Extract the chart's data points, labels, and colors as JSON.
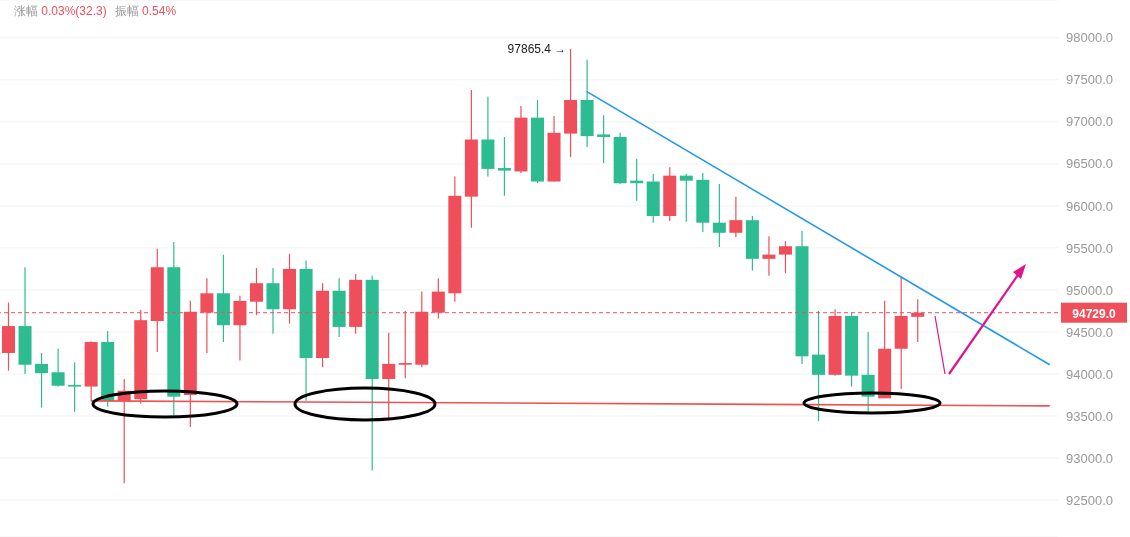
{
  "chart_data": {
    "type": "candlestick",
    "categories": [
      null,
      null,
      null,
      null,
      null,
      null,
      null,
      null,
      null,
      null,
      null,
      null,
      null,
      null,
      null,
      null,
      null,
      null,
      null,
      null,
      null,
      null,
      null,
      null,
      null,
      null,
      null,
      null,
      null,
      null,
      null,
      null,
      null,
      null,
      null,
      null,
      null,
      null,
      null,
      null,
      null,
      null,
      null,
      null,
      null,
      null,
      null,
      null,
      null,
      null,
      null,
      null,
      null,
      null,
      null,
      null,
      null,
      null,
      null,
      null,
      null,
      null,
      null,
      null
    ],
    "ohlc": [
      [
        94250,
        94850,
        94040,
        94570
      ],
      [
        94570,
        95270,
        94000,
        94110
      ],
      [
        94120,
        94250,
        93600,
        94010
      ],
      [
        94020,
        94300,
        93850,
        93860
      ],
      [
        93870,
        94140,
        93550,
        93850
      ],
      [
        93850,
        94390,
        93680,
        94380
      ],
      [
        94380,
        94510,
        93610,
        93680
      ],
      [
        93680,
        93940,
        92700,
        93800
      ],
      [
        93700,
        94760,
        93650,
        94640
      ],
      [
        94630,
        95490,
        94260,
        95270
      ],
      [
        95270,
        95570,
        93510,
        93730
      ],
      [
        93750,
        94870,
        93370,
        94740
      ],
      [
        94730,
        95140,
        94250,
        94960
      ],
      [
        94960,
        95420,
        94380,
        94580
      ],
      [
        94580,
        94930,
        94160,
        94870
      ],
      [
        94860,
        95260,
        94700,
        95080
      ],
      [
        95080,
        95260,
        94480,
        94770
      ],
      [
        94770,
        95430,
        94600,
        95250
      ],
      [
        95250,
        95350,
        93680,
        94190
      ],
      [
        94190,
        95080,
        94080,
        94990
      ],
      [
        94990,
        95140,
        94440,
        94560
      ],
      [
        94560,
        95190,
        94480,
        95120
      ],
      [
        95120,
        95170,
        92850,
        93940
      ],
      [
        93940,
        94490,
        93480,
        94120
      ],
      [
        94110,
        94750,
        93950,
        94130
      ],
      [
        94110,
        94980,
        94080,
        94740
      ],
      [
        94730,
        95140,
        94660,
        94980
      ],
      [
        94960,
        96350,
        94860,
        96120
      ],
      [
        96110,
        97380,
        95740,
        96790
      ],
      [
        96790,
        97300,
        96350,
        96440
      ],
      [
        96450,
        96820,
        96120,
        96420
      ],
      [
        96410,
        97190,
        96390,
        97050
      ],
      [
        97050,
        97260,
        96270,
        96290
      ],
      [
        96290,
        97070,
        96290,
        96870
      ],
      [
        96860,
        97865.4,
        96580,
        97260
      ],
      [
        97260,
        97740,
        96700,
        96830
      ],
      [
        96850,
        97080,
        96510,
        96820
      ],
      [
        96820,
        96870,
        96260,
        96270
      ],
      [
        96300,
        96560,
        96060,
        96270
      ],
      [
        96290,
        96380,
        95800,
        95880
      ],
      [
        95880,
        96460,
        95820,
        96360
      ],
      [
        96360,
        96380,
        95810,
        96300
      ],
      [
        96310,
        96390,
        95690,
        95800
      ],
      [
        95800,
        96260,
        95510,
        95680
      ],
      [
        95680,
        96110,
        95630,
        95830
      ],
      [
        95830,
        95880,
        95230,
        95370
      ],
      [
        95370,
        95640,
        95170,
        95420
      ],
      [
        95420,
        95580,
        95200,
        95520
      ],
      [
        95520,
        95700,
        94120,
        94210
      ],
      [
        94230,
        94750,
        93440,
        93990
      ],
      [
        93990,
        94770,
        93980,
        94690
      ],
      [
        94690,
        94730,
        93850,
        93980
      ],
      [
        93990,
        94500,
        93550,
        93730
      ],
      [
        93710,
        94870,
        93710,
        94300
      ],
      [
        94300,
        95160,
        93820,
        94690
      ],
      [
        94680,
        94890,
        94380,
        94729
      ],
      null,
      null,
      null,
      null,
      null,
      null,
      null,
      null
    ],
    "colors": [
      "#ef4f5b",
      "#2dbb92",
      "#2dbb92",
      "#2dbb92",
      "#2dbb92",
      "#ef4f5b",
      "#2dbb92",
      "#ef4f5b",
      "#ef4f5b",
      "#ef4f5b",
      "#2dbb92",
      "#ef4f5b",
      "#ef4f5b",
      "#2dbb92",
      "#ef4f5b",
      "#ef4f5b",
      "#2dbb92",
      "#ef4f5b",
      "#2dbb92",
      "#ef4f5b",
      "#2dbb92",
      "#ef4f5b",
      "#2dbb92",
      "#ef4f5b",
      "#ef4f5b",
      "#ef4f5b",
      "#ef4f5b",
      "#ef4f5b",
      "#ef4f5b",
      "#2dbb92",
      "#2dbb92",
      "#ef4f5b",
      "#2dbb92",
      "#ef4f5b",
      "#ef4f5b",
      "#2dbb92",
      "#2dbb92",
      "#2dbb92",
      "#2dbb92",
      "#2dbb92",
      "#ef4f5b",
      "#2dbb92",
      "#2dbb92",
      "#2dbb92",
      "#ef4f5b",
      "#2dbb92",
      "#ef4f5b",
      "#ef4f5b",
      "#2dbb92",
      "#2dbb92",
      "#ef4f5b",
      "#2dbb92",
      "#2dbb92",
      "#ef4f5b",
      "#ef4f5b",
      "#ef4f5b",
      null,
      null,
      null,
      null,
      null,
      null,
      null,
      null
    ],
    "series": [
      {
        "type": "line",
        "color": "#2196f3",
        "values": [
          null,
          null,
          null,
          null,
          null,
          null,
          null,
          null,
          null,
          null,
          null,
          null,
          null,
          null,
          null,
          null,
          null,
          null,
          null,
          null,
          null,
          null,
          null,
          null,
          null,
          null,
          null,
          null,
          null,
          null,
          null,
          null,
          null,
          null,
          null,
          97360,
          null,
          null,
          null,
          null,
          null,
          null,
          null,
          null,
          null,
          null,
          null,
          null,
          null,
          null,
          null,
          null,
          null,
          null,
          null,
          null,
          null,
          null,
          null,
          null,
          null,
          null,
          null,
          94110
        ]
      },
      {
        "type": "line",
        "color": "#f0504f",
        "values": [
          null,
          null,
          null,
          null,
          null,
          93680,
          null,
          null,
          null,
          null,
          null,
          null,
          null,
          null,
          null,
          null,
          null,
          null,
          null,
          null,
          null,
          null,
          null,
          null,
          null,
          null,
          null,
          null,
          null,
          null,
          null,
          null,
          null,
          null,
          null,
          null,
          null,
          null,
          null,
          null,
          null,
          null,
          null,
          null,
          null,
          null,
          null,
          null,
          null,
          null,
          null,
          null,
          null,
          null,
          null,
          null,
          null,
          null,
          null,
          null,
          null,
          null,
          null,
          93620
        ]
      }
    ],
    "ylim": [
      92060,
      98450
    ],
    "yticks": [
      {
        "value": 92500,
        "label": "92500.0"
      },
      {
        "value": 93000,
        "label": "93000.0"
      },
      {
        "value": 93500,
        "label": "93500.0"
      },
      {
        "value": 94000,
        "label": "94000.0"
      },
      {
        "value": 94500,
        "label": "94500.0"
      },
      {
        "value": 95000,
        "label": "95000.0"
      },
      {
        "value": 95500,
        "label": "95500.0"
      },
      {
        "value": 96000,
        "label": "96000.0"
      },
      {
        "value": 96500,
        "label": "96500.0"
      },
      {
        "value": 97000,
        "label": "97000.0"
      },
      {
        "value": 97500,
        "label": "97500.0"
      },
      {
        "value": 98000,
        "label": "98000.0"
      }
    ],
    "ref_lines": [
      {
        "axis": "y",
        "value": 94729,
        "label": "94729.0",
        "color": "#ef4f5b",
        "line_style": "dashed"
      }
    ],
    "annotations": [
      "涨幅 0.03%(32.3)",
      "振幅 0.54%",
      "97865.4 →"
    ],
    "grid": "y",
    "tick_labels": "y"
  }
}
